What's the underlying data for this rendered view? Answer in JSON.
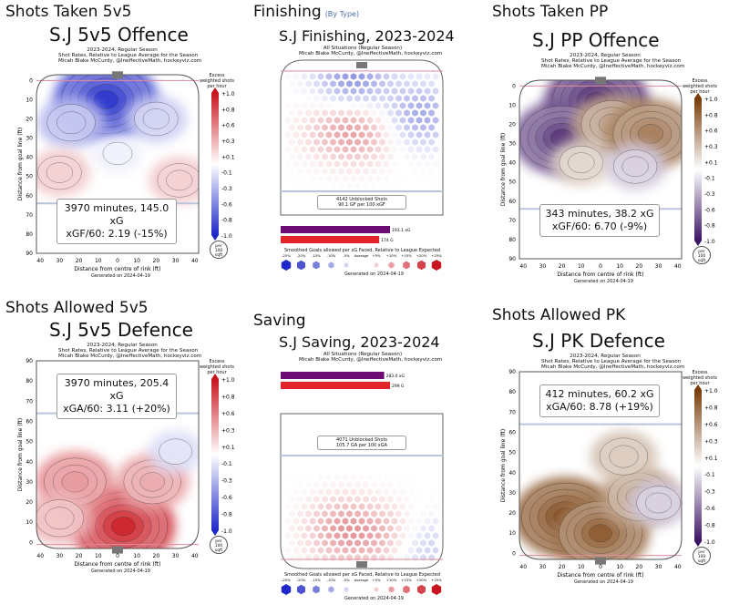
{
  "colors": {
    "red": "#e0242a",
    "blue": "#2233cc",
    "purple": "#3d1a66",
    "orange": "#c06a10",
    "rink_line": "#b8c4dc",
    "goal": "#777777"
  },
  "panels": [
    {
      "id": "off5v5",
      "section": "Shots Taken 5v5",
      "title": "S.J 5v5 Offence",
      "subtitle": [
        "2023-2024, Regular Season",
        "Shot Rates, Relative to League Average for the Season",
        "Micah Blake McCurdy, @IneffectiveMath, hockeyviz.com"
      ],
      "stat_line1": "3970 minutes, 145.0 xG",
      "stat_line2": "xGF/60: 2.19 (-15%)",
      "ylabel": "Distance from goal line (ft)",
      "xlabel": "Distance from centre of rink (ft)",
      "yticks": [
        "0",
        "10",
        "20",
        "30",
        "40",
        "50",
        "60",
        "70",
        "80",
        "90"
      ],
      "xticks": [
        "40",
        "30",
        "20",
        "10",
        "0",
        "10",
        "20",
        "30",
        "40"
      ],
      "cb_title": [
        "Excess",
        "weighted shots",
        "per hour"
      ],
      "cb_ticks": [
        "+1.0",
        "+0.8",
        "+0.6",
        "+0.3",
        "+0.1",
        "-0.1",
        "-0.3",
        "-0.6",
        "-0.8",
        "-1.0"
      ],
      "unit": [
        "per",
        "100",
        "sqft"
      ],
      "footer": "Generated on 2024-04-19"
    },
    {
      "id": "finishing",
      "section": "Finishing",
      "section_note": "(By Type)",
      "title": "S.J Finishing, 2023-2024",
      "subtitle": [
        "All Situations (Regular Season)",
        "Micah Blake McCurdy, @IneffectiveMath, hockeyviz.com"
      ],
      "box": [
        "4142 Unblocked Shots",
        "90.1 GF per 100 xGF"
      ],
      "bar_labels": [
        "193.1 xG",
        "174 G"
      ],
      "legend_title": "Smoothed Goals allowed per xG Faced, Relative to League Expected",
      "legend_ticks": [
        "-25%",
        "-20%",
        "-15%",
        "-10%",
        "-5%",
        "Average",
        "+5%",
        "+10%",
        "+15%",
        "+20%",
        "+25%"
      ],
      "footer": "Generated on 2024-04-19"
    },
    {
      "id": "ppoff",
      "section": "Shots Taken PP",
      "title": "S.J PP Offence",
      "subtitle": [
        "2023-2024, Regular Season",
        "Shot Rates, Relative to League Average for the Season",
        "Micah Blake McCurdy, @IneffectiveMath, hockeyviz.com"
      ],
      "stat_line1": "343 minutes, 38.2 xG",
      "stat_line2": "xGF/60: 6.70 (-9%)",
      "ylabel": "Distance from goal line (ft)",
      "xlabel": "Distance from centre of rink (ft)",
      "yticks": [
        "0",
        "10",
        "20",
        "30",
        "40",
        "50",
        "60",
        "70",
        "80",
        "90"
      ],
      "xticks": [
        "40",
        "30",
        "20",
        "10",
        "0",
        "10",
        "20",
        "30",
        "40"
      ],
      "cb_title": [
        "Excess",
        "weighted shots",
        "per hour"
      ],
      "cb_ticks": [
        "+1.0",
        "+0.8",
        "+0.6",
        "+0.3",
        "+0.1",
        "-0.1",
        "-0.3",
        "-0.6",
        "-0.8",
        "-1.0"
      ],
      "unit": [
        "per",
        "100",
        "sqft"
      ],
      "footer": "Generated on 2024-04-19"
    },
    {
      "id": "def5v5",
      "section": "Shots Allowed 5v5",
      "title": "S.J 5v5 Defence",
      "subtitle": [
        "2023-2024, Regular Season",
        "Shot Rates, Relative to League Average for the Season",
        "Micah Blake McCurdy, @IneffectiveMath, hockeyviz.com"
      ],
      "stat_line1": "3970 minutes, 205.4 xG",
      "stat_line2": "xGA/60: 3.11 (+20%)",
      "ylabel": "Distance from goal line (ft)",
      "xlabel": "Distance from centre of rink (ft)",
      "yticks": [
        "90",
        "80",
        "70",
        "60",
        "50",
        "40",
        "30",
        "20",
        "10",
        "0"
      ],
      "xticks": [
        "40",
        "30",
        "20",
        "10",
        "0",
        "10",
        "20",
        "30",
        "40"
      ],
      "cb_title": [
        "Excess",
        "weighted shots",
        "per hour"
      ],
      "cb_ticks": [
        "+1.0",
        "+0.8",
        "+0.6",
        "+0.3",
        "+0.1",
        "-0.1",
        "-0.3",
        "-0.6",
        "-0.8",
        "-1.0"
      ],
      "unit": [
        "per",
        "100",
        "sqft"
      ],
      "footer": "Generated on 2024-04-19"
    },
    {
      "id": "saving",
      "section": "Saving",
      "title": "S.J Saving, 2023-2024",
      "subtitle": [
        "All Situations (Regular Season)",
        "Micah Blake McCurdy, @IneffectiveMath, hockeyviz.com"
      ],
      "box": [
        "4071 Unblocked Shots",
        "105.7 GA per 100 xGA"
      ],
      "bar_labels": [
        "283.0 xG",
        "299 G"
      ],
      "legend_title": "Smoothed Goals allowed per xG Faced, Relative to League Expected",
      "legend_ticks": [
        "-25%",
        "-20%",
        "-15%",
        "-10%",
        "-5%",
        "Average",
        "+5%",
        "+10%",
        "+15%",
        "+20%",
        "+25%"
      ],
      "footer": "Generated on 2024-04-19"
    },
    {
      "id": "pkdef",
      "section": "Shots Allowed PK",
      "title": "S.J PK Defence",
      "subtitle": [
        "2023-2024, Regular Season",
        "Shot Rates, Relative to League Average for the Season",
        "Micah Blake McCurdy, @IneffectiveMath, hockeyviz.com"
      ],
      "stat_line1": "412 minutes, 60.2 xG",
      "stat_line2": "xGA/60: 8.78 (+19%)",
      "ylabel": "Distance from goal line (ft)",
      "xlabel": "Distance from centre of rink (ft)",
      "yticks": [
        "90",
        "80",
        "70",
        "60",
        "50",
        "40",
        "30",
        "20",
        "10",
        "0"
      ],
      "xticks": [
        "40",
        "30",
        "20",
        "10",
        "0",
        "10",
        "20",
        "30",
        "40"
      ],
      "cb_title": [
        "Excess",
        "weighted shots",
        "per hour"
      ],
      "cb_ticks": [
        "+1.0",
        "+0.8",
        "+0.6",
        "+0.3",
        "+0.1",
        "-0.1",
        "-0.3",
        "-0.6",
        "-0.8",
        "-1.0"
      ],
      "unit": [
        "per",
        "100",
        "sqft"
      ],
      "footer": "Generated on 2024-04-19"
    }
  ],
  "chart_data": [
    {
      "type": "heatmap",
      "title": "S.J 5v5 Offence",
      "xlabel": "Distance from centre of rink (ft)",
      "ylabel": "Distance from goal line (ft)",
      "xlim": [
        -42,
        42
      ],
      "ylim": [
        90,
        -3
      ],
      "colorscale": "blue-white-red",
      "clim": [
        -1.0,
        1.0
      ],
      "hotspots": [
        {
          "x": -6,
          "y": 10,
          "value": -1.0
        },
        {
          "x": -24,
          "y": 22,
          "value": -0.4
        },
        {
          "x": 20,
          "y": 20,
          "value": -0.3
        },
        {
          "x": -30,
          "y": 48,
          "value": 0.3
        },
        {
          "x": 32,
          "y": 52,
          "value": 0.3
        },
        {
          "x": 0,
          "y": 38,
          "value": -0.1
        }
      ],
      "stats": {
        "minutes": 3970,
        "xG": 145.0,
        "xGF_per_60": 2.19,
        "relative_pct": -15
      }
    },
    {
      "type": "heatmap",
      "title": "S.J Finishing, 2023-2024",
      "colorscale": "blue-white-red",
      "summary": {
        "unblocked_shots": 4142,
        "GF_per_100_xGF": 90.1
      },
      "bars": [
        {
          "label": "xG",
          "value": 193.1
        },
        {
          "label": "G",
          "value": 174
        }
      ],
      "hotspots": [
        {
          "x": -5,
          "y": 8,
          "value": -0.25
        },
        {
          "x": -15,
          "y": 38,
          "value": 0.1
        },
        {
          "x": 0,
          "y": 40,
          "value": 0.15
        },
        {
          "x": 30,
          "y": 30,
          "value": -0.2
        }
      ]
    },
    {
      "type": "heatmap",
      "title": "S.J PP Offence",
      "xlabel": "Distance from centre of rink (ft)",
      "ylabel": "Distance from goal line (ft)",
      "xlim": [
        -42,
        42
      ],
      "ylim": [
        90,
        -3
      ],
      "colorscale": "purple-white-orange",
      "clim": [
        -1.0,
        1.0
      ],
      "hotspots": [
        {
          "x": -2,
          "y": 8,
          "value": -1.0
        },
        {
          "x": -20,
          "y": 27,
          "value": -0.9
        },
        {
          "x": 6,
          "y": 20,
          "value": 0.6
        },
        {
          "x": 26,
          "y": 25,
          "value": 0.8
        },
        {
          "x": -10,
          "y": 40,
          "value": 0.3
        },
        {
          "x": 18,
          "y": 42,
          "value": -0.3
        }
      ],
      "stats": {
        "minutes": 343,
        "xG": 38.2,
        "xGF_per_60": 6.7,
        "relative_pct": -9
      }
    },
    {
      "type": "heatmap",
      "title": "S.J 5v5 Defence",
      "xlabel": "Distance from centre of rink (ft)",
      "ylabel": "Distance from goal line (ft)",
      "xlim": [
        -42,
        42
      ],
      "ylim": [
        90,
        -3
      ],
      "colorscale": "blue-white-red",
      "clim": [
        -1.0,
        1.0
      ],
      "hotspots": [
        {
          "x": 3,
          "y": 8,
          "value": 1.0
        },
        {
          "x": -22,
          "y": 30,
          "value": 0.6
        },
        {
          "x": 18,
          "y": 30,
          "value": 0.5
        },
        {
          "x": -30,
          "y": 12,
          "value": 0.4
        },
        {
          "x": 30,
          "y": 45,
          "value": -0.2
        }
      ],
      "stats": {
        "minutes": 3970,
        "xG": 205.4,
        "xGA_per_60": 3.11,
        "relative_pct": 20
      }
    },
    {
      "type": "heatmap",
      "title": "S.J Saving, 2023-2024",
      "colorscale": "blue-white-red",
      "summary": {
        "unblocked_shots": 4071,
        "GA_per_100_xGA": 105.7
      },
      "bars": [
        {
          "label": "xG",
          "value": 283.0
        },
        {
          "label": "G",
          "value": 299
        }
      ],
      "hotspots": [
        {
          "x": -10,
          "y": 20,
          "value": 0.2
        },
        {
          "x": 15,
          "y": 15,
          "value": 0.15
        },
        {
          "x": 30,
          "y": 10,
          "value": -0.15
        }
      ]
    },
    {
      "type": "heatmap",
      "title": "S.J PK Defence",
      "xlabel": "Distance from centre of rink (ft)",
      "ylabel": "Distance from goal line (ft)",
      "xlim": [
        -42,
        42
      ],
      "ylim": [
        90,
        -3
      ],
      "colorscale": "purple-white-orange",
      "clim": [
        -1.0,
        1.0
      ],
      "hotspots": [
        {
          "x": -18,
          "y": 18,
          "value": 1.0
        },
        {
          "x": 0,
          "y": 10,
          "value": 0.9
        },
        {
          "x": 20,
          "y": 28,
          "value": 0.6
        },
        {
          "x": 12,
          "y": 48,
          "value": 0.4
        },
        {
          "x": 30,
          "y": 25,
          "value": -0.3
        }
      ],
      "stats": {
        "minutes": 412,
        "xG": 60.2,
        "xGA_per_60": 8.78,
        "relative_pct": 19
      }
    }
  ]
}
